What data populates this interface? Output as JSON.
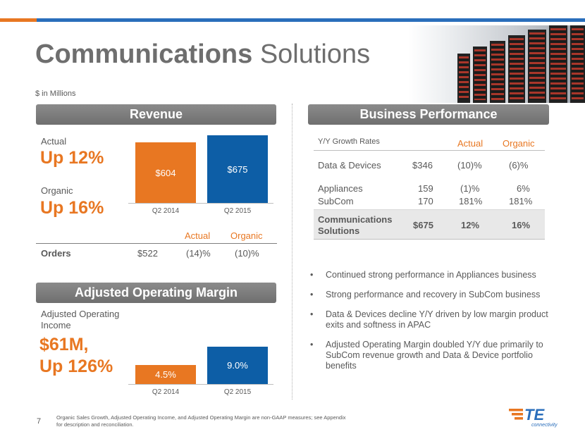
{
  "title": {
    "bold": "Communications",
    "rest": "Solutions"
  },
  "units_note": "$ in Millions",
  "revenue": {
    "banner": "Revenue",
    "actual_label": "Actual",
    "actual_value": "Up 12%",
    "organic_label": "Organic",
    "organic_value": "Up 16%",
    "chart_data": {
      "type": "bar",
      "categories": [
        "Q2 2014",
        "Q2 2015"
      ],
      "values": [
        604,
        675
      ],
      "value_labels": [
        "$604",
        "$675"
      ],
      "colors": [
        "#e87722",
        "#0d5ea6"
      ],
      "title": "",
      "xlabel": "",
      "ylabel": ""
    }
  },
  "orders": {
    "headers": {
      "actual": "Actual",
      "organic": "Organic"
    },
    "label": "Orders",
    "value": "$522",
    "actual": "(14)%",
    "organic": "(10)%"
  },
  "margin": {
    "banner": "Adjusted Operating Margin",
    "label": "Adjusted Operating Income",
    "value_line1": "$61M,",
    "value_line2": "Up 126%",
    "chart_data": {
      "type": "bar",
      "categories": [
        "Q2 2014",
        "Q2 2015"
      ],
      "values": [
        4.5,
        9.0
      ],
      "value_labels": [
        "4.5%",
        "9.0%"
      ],
      "colors": [
        "#e87722",
        "#0d5ea6"
      ],
      "title": "",
      "xlabel": "",
      "ylabel": ""
    }
  },
  "business_performance": {
    "banner": "Business Performance",
    "headers": {
      "label": "Y/Y Growth Rates",
      "actual": "Actual",
      "organic": "Organic"
    },
    "rows": [
      {
        "name": "Data & Devices",
        "value": "$346",
        "actual": "(10)%",
        "organic": "(6)%"
      },
      {
        "name": "Appliances",
        "value": "159",
        "actual": "(1)%",
        "organic": "6%"
      },
      {
        "name": "SubCom",
        "value": "170",
        "actual": "181%",
        "organic": "181%"
      }
    ],
    "total": {
      "name": "Communications Solutions",
      "value": "$675",
      "actual": "12%",
      "organic": "16%"
    }
  },
  "bullets": [
    "Continued strong performance in Appliances business",
    "Strong performance and recovery in SubCom business",
    "Data & Devices decline Y/Y driven by low margin product exits and softness in APAC",
    "Adjusted Operating Margin doubled Y/Y due primarily to SubCom revenue growth and Data & Device portfolio benefits"
  ],
  "footer": {
    "page": "7",
    "note": "Organic Sales Growth, Adjusted Operating Income, and Adjusted Operating Margin are non-GAAP measures; see Appendix for description and reconciliation."
  },
  "logo": {
    "text": "TE",
    "subtext": "connectivity"
  },
  "colors": {
    "orange": "#e87722",
    "blue": "#0d5ea6",
    "banner_gray": "#7f7f7f",
    "rule_blue": "#2a6ebb"
  }
}
